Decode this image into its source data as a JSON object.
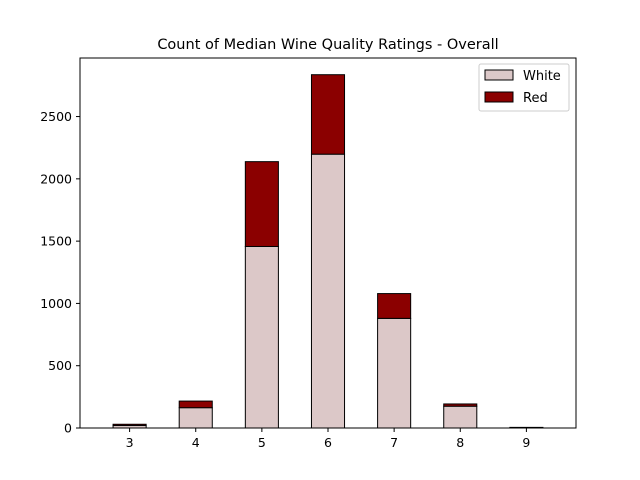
{
  "chart_data": {
    "type": "bar",
    "stacked": true,
    "title": "Count of Median Wine Quality Ratings - Overall",
    "xlabel": "",
    "ylabel": "",
    "categories": [
      "3",
      "4",
      "5",
      "6",
      "7",
      "8",
      "9"
    ],
    "series": [
      {
        "name": "White",
        "color": "#dcc8c8",
        "values": [
          20,
          163,
          1457,
          2198,
          880,
          175,
          5
        ]
      },
      {
        "name": "Red",
        "color": "#8b0000",
        "values": [
          10,
          53,
          681,
          638,
          199,
          18,
          0
        ]
      }
    ],
    "ylim": [
      0,
      2970
    ],
    "yticks": [
      0,
      500,
      1000,
      1500,
      2000,
      2500
    ],
    "legend_position": "top-right",
    "grid": false
  }
}
